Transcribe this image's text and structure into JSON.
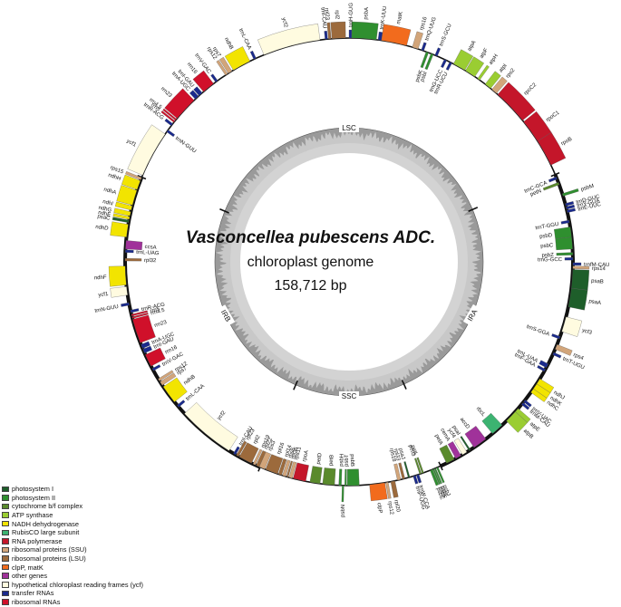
{
  "title": {
    "species": "Vasconcellea pubescens ADC.",
    "subtitle": "chloroplast genome",
    "size": "158,712 bp"
  },
  "regions": [
    {
      "label": "LSC"
    },
    {
      "label": "IRA"
    },
    {
      "label": "SSC"
    },
    {
      "label": "IRB"
    }
  ],
  "categories": [
    {
      "key": "psI",
      "label": "photosystem I",
      "color": "#1e5e2a"
    },
    {
      "key": "psII",
      "label": "photosystem II",
      "color": "#2f8f2f"
    },
    {
      "key": "cytb",
      "label": "cytochrome b/f complex",
      "color": "#5a8a2c"
    },
    {
      "key": "atp",
      "label": "ATP synthase",
      "color": "#9acd32"
    },
    {
      "key": "ndh",
      "label": "NADH dehydrogenase",
      "color": "#f2e400"
    },
    {
      "key": "rbc",
      "label": "RubisCO large subunit",
      "color": "#3cb371"
    },
    {
      "key": "rpo",
      "label": "RNA polymerase",
      "color": "#c4162a"
    },
    {
      "key": "ssu",
      "label": "ribosomal proteins (SSU)",
      "color": "#d2a57a"
    },
    {
      "key": "lsu",
      "label": "ribosomal proteins (LSU)",
      "color": "#9c6a3c"
    },
    {
      "key": "clp",
      "label": "clpP, matK",
      "color": "#f26b1d"
    },
    {
      "key": "other",
      "label": "other genes",
      "color": "#a0329a"
    },
    {
      "key": "ycf",
      "label": "hypothetical chloroplast reading frames (ycf)",
      "color": "#fffbe0"
    },
    {
      "key": "trna",
      "label": "transfer RNAs",
      "color": "#1a2a8c"
    },
    {
      "key": "rrna",
      "label": "ribosomal RNAs",
      "color": "#d0102a"
    }
  ],
  "genes": [
    {
      "name": "psbA",
      "start": 0.3,
      "end": 3.2,
      "cat": "psII",
      "side": "out"
    },
    {
      "name": "trnH-GUG",
      "start": 0.0,
      "end": 0.3,
      "cat": "trna",
      "side": "out"
    },
    {
      "name": "trnK-UUU",
      "start": 3.4,
      "end": 3.8,
      "cat": "trna",
      "side": "out"
    },
    {
      "name": "matK",
      "start": 3.8,
      "end": 6.8,
      "cat": "clp",
      "side": "out"
    },
    {
      "name": "rps16",
      "start": 7.5,
      "end": 8.2,
      "cat": "ssu",
      "side": "out"
    },
    {
      "name": "trnQ-UUG",
      "start": 8.6,
      "end": 8.9,
      "cat": "trna",
      "side": "out"
    },
    {
      "name": "psbK",
      "start": 9.2,
      "end": 9.5,
      "cat": "psII",
      "side": "in"
    },
    {
      "name": "psbI",
      "start": 9.8,
      "end": 10.1,
      "cat": "psII",
      "side": "in"
    },
    {
      "name": "trnS-GCU",
      "start": 10.3,
      "end": 10.6,
      "cat": "trna",
      "side": "out"
    },
    {
      "name": "trnG-UCC",
      "start": 11.5,
      "end": 11.8,
      "cat": "trna",
      "side": "in"
    },
    {
      "name": "trnR-UCU",
      "start": 12.2,
      "end": 12.5,
      "cat": "trna",
      "side": "in"
    },
    {
      "name": "atpA",
      "start": 12.7,
      "end": 14.2,
      "cat": "atp",
      "side": "out"
    },
    {
      "name": "atpF",
      "start": 14.3,
      "end": 15.6,
      "cat": "atp",
      "side": "out"
    },
    {
      "name": "atpH",
      "start": 16.0,
      "end": 16.3,
      "cat": "atp",
      "side": "out"
    },
    {
      "name": "atpI",
      "start": 17.1,
      "end": 17.9,
      "cat": "atp",
      "side": "out"
    },
    {
      "name": "rps2",
      "start": 18.1,
      "end": 18.8,
      "cat": "ssu",
      "side": "out"
    },
    {
      "name": "rpoC2",
      "start": 19.0,
      "end": 23.2,
      "cat": "rpo",
      "side": "out"
    },
    {
      "name": "rpoC1",
      "start": 23.4,
      "end": 26.2,
      "cat": "rpo",
      "side": "out"
    },
    {
      "name": "rpoB",
      "start": 26.2,
      "end": 29.4,
      "cat": "rpo",
      "side": "out"
    },
    {
      "name": "trnC-GCA",
      "start": 30.9,
      "end": 31.2,
      "cat": "trna",
      "side": "in"
    },
    {
      "name": "petN",
      "start": 31.6,
      "end": 31.9,
      "cat": "cytb",
      "side": "in"
    },
    {
      "name": "psbM",
      "start": 33.0,
      "end": 33.3,
      "cat": "psII",
      "side": "out"
    },
    {
      "name": "trnD-GUC",
      "start": 34.2,
      "end": 34.5,
      "cat": "trna",
      "side": "out"
    },
    {
      "name": "trnY-GUA",
      "start": 34.6,
      "end": 34.9,
      "cat": "trna",
      "side": "out"
    },
    {
      "name": "trnE-UUC",
      "start": 35.0,
      "end": 35.3,
      "cat": "trna",
      "side": "out"
    },
    {
      "name": "trnT-GGU",
      "start": 36.2,
      "end": 36.5,
      "cat": "trna",
      "side": "in"
    },
    {
      "name": "psbD",
      "start": 37.0,
      "end": 38.2,
      "cat": "psII",
      "side": "in"
    },
    {
      "name": "psbC",
      "start": 38.2,
      "end": 39.6,
      "cat": "psII",
      "side": "in"
    },
    {
      "name": "psbZ",
      "start": 40.0,
      "end": 40.3,
      "cat": "psII",
      "side": "in"
    },
    {
      "name": "trnG-GCC",
      "start": 40.6,
      "end": 40.9,
      "cat": "trna",
      "side": "in"
    },
    {
      "name": "trnfM-CAU",
      "start": 41.2,
      "end": 41.5,
      "cat": "trna",
      "side": "out"
    },
    {
      "name": "rps14",
      "start": 41.6,
      "end": 41.9,
      "cat": "ssu",
      "side": "out"
    },
    {
      "name": "psaB",
      "start": 42.0,
      "end": 44.2,
      "cat": "psI",
      "side": "out"
    },
    {
      "name": "psaA",
      "start": 44.2,
      "end": 46.4,
      "cat": "psI",
      "side": "out"
    },
    {
      "name": "ycf3",
      "start": 47.6,
      "end": 49.4,
      "cat": "ycf",
      "side": "out"
    },
    {
      "name": "trnS-GGA",
      "start": 50.0,
      "end": 50.3,
      "cat": "trna",
      "side": "in"
    },
    {
      "name": "rps4",
      "start": 51.0,
      "end": 51.6,
      "cat": "ssu",
      "side": "out"
    },
    {
      "name": "trnT-UGU",
      "start": 52.0,
      "end": 52.3,
      "cat": "trna",
      "side": "out"
    },
    {
      "name": "trnL-UAA",
      "start": 53.5,
      "end": 54.0,
      "cat": "trna",
      "side": "in"
    },
    {
      "name": "trnF-GAA",
      "start": 54.2,
      "end": 54.5,
      "cat": "trna",
      "side": "in"
    },
    {
      "name": "ndhJ",
      "start": 55.5,
      "end": 56.2,
      "cat": "ndh",
      "side": "out"
    },
    {
      "name": "ndhK",
      "start": 56.2,
      "end": 56.9,
      "cat": "ndh",
      "side": "out"
    },
    {
      "name": "ndhC",
      "start": 56.9,
      "end": 57.4,
      "cat": "ndh",
      "side": "out"
    },
    {
      "name": "trnV-UAC",
      "start": 58.5,
      "end": 58.8,
      "cat": "trna",
      "side": "out"
    },
    {
      "name": "trnM-CAU",
      "start": 58.9,
      "end": 59.2,
      "cat": "trna",
      "side": "out"
    },
    {
      "name": "atpE",
      "start": 59.8,
      "end": 60.3,
      "cat": "atp",
      "side": "out"
    },
    {
      "name": "atpB",
      "start": 60.3,
      "end": 61.8,
      "cat": "atp",
      "side": "out"
    },
    {
      "name": "rbcL",
      "start": 62.5,
      "end": 64.0,
      "cat": "rbc",
      "side": "in"
    },
    {
      "name": "accD",
      "start": 65.0,
      "end": 66.7,
      "cat": "other",
      "side": "in"
    },
    {
      "name": "psaI",
      "start": 67.2,
      "end": 67.4,
      "cat": "psI",
      "side": "in"
    },
    {
      "name": "ycf4",
      "start": 67.7,
      "end": 68.3,
      "cat": "ycf",
      "side": "in"
    },
    {
      "name": "cemA",
      "start": 68.5,
      "end": 69.2,
      "cat": "other",
      "side": "in"
    },
    {
      "name": "petA",
      "start": 69.4,
      "end": 70.4,
      "cat": "cytb",
      "side": "in"
    },
    {
      "name": "psbJ",
      "start": 71.5,
      "end": 71.7,
      "cat": "psII",
      "side": "out"
    },
    {
      "name": "psbL",
      "start": 71.8,
      "end": 71.95,
      "cat": "psII",
      "side": "out"
    },
    {
      "name": "psbF",
      "start": 72.0,
      "end": 72.15,
      "cat": "psII",
      "side": "out"
    },
    {
      "name": "psbE",
      "start": 72.2,
      "end": 72.5,
      "cat": "psII",
      "side": "out"
    },
    {
      "name": "petL",
      "start": 73.3,
      "end": 73.5,
      "cat": "cytb",
      "side": "in"
    },
    {
      "name": "petG",
      "start": 73.6,
      "end": 73.8,
      "cat": "cytb",
      "side": "in"
    },
    {
      "name": "trnW-CCA",
      "start": 73.9,
      "end": 74.2,
      "cat": "trna",
      "side": "out"
    },
    {
      "name": "trnP-UGG",
      "start": 74.3,
      "end": 74.6,
      "cat": "trna",
      "side": "out"
    },
    {
      "name": "psaJ",
      "start": 75.0,
      "end": 75.2,
      "cat": "psI",
      "side": "in"
    },
    {
      "name": "rpl33",
      "start": 75.6,
      "end": 75.9,
      "cat": "lsu",
      "side": "in"
    },
    {
      "name": "rps18",
      "start": 76.1,
      "end": 76.5,
      "cat": "ssu",
      "side": "in"
    },
    {
      "name": "rpl20",
      "start": 76.8,
      "end": 77.3,
      "cat": "lsu",
      "side": "out"
    },
    {
      "name": "rps12",
      "start": 77.6,
      "end": 77.9,
      "cat": "ssu",
      "side": "out"
    },
    {
      "name": "clpP",
      "start": 78.0,
      "end": 79.8,
      "cat": "clp",
      "side": "out"
    },
    {
      "name": "psbB",
      "start": 81.0,
      "end": 82.4,
      "cat": "psII",
      "side": "in"
    },
    {
      "name": "psbT",
      "start": 82.5,
      "end": 82.7,
      "cat": "psII",
      "side": "in"
    },
    {
      "name": "psbN",
      "start": 82.8,
      "end": 83.0,
      "cat": "psII",
      "side": "out"
    },
    {
      "name": "psbH",
      "start": 83.1,
      "end": 83.4,
      "cat": "psII",
      "side": "in"
    },
    {
      "name": "petB",
      "start": 83.9,
      "end": 85.3,
      "cat": "cytb",
      "side": "in"
    },
    {
      "name": "petD",
      "start": 85.6,
      "end": 86.8,
      "cat": "cytb",
      "side": "in"
    },
    {
      "name": "rpoA",
      "start": 87.3,
      "end": 88.8,
      "cat": "rpo",
      "side": "in"
    },
    {
      "name": "rps11",
      "start": 88.9,
      "end": 89.3,
      "cat": "ssu",
      "side": "in"
    },
    {
      "name": "rpl36",
      "start": 89.4,
      "end": 89.6,
      "cat": "lsu",
      "side": "in"
    },
    {
      "name": "rps8",
      "start": 89.7,
      "end": 90.1,
      "cat": "ssu",
      "side": "in"
    },
    {
      "name": "rpl14",
      "start": 90.2,
      "end": 90.6,
      "cat": "lsu",
      "side": "in"
    },
    {
      "name": "rpl16",
      "start": 90.7,
      "end": 92.2,
      "cat": "lsu",
      "side": "in"
    },
    {
      "name": "rps3",
      "start": 92.3,
      "end": 93.0,
      "cat": "ssu",
      "side": "in"
    },
    {
      "name": "rpl22",
      "start": 93.0,
      "end": 93.4,
      "cat": "lsu",
      "side": "in"
    },
    {
      "name": "rps19",
      "start": 93.5,
      "end": 93.8,
      "cat": "ssu",
      "side": "in"
    },
    {
      "name": "rpl2",
      "start": 94.0,
      "end": 95.6,
      "cat": "lsu",
      "side": "in"
    },
    {
      "name": "rpl23",
      "start": 95.7,
      "end": 96.0,
      "cat": "lsu",
      "side": "in"
    },
    {
      "name": "trnI-CAU",
      "start": 96.1,
      "end": 96.4,
      "cat": "trna",
      "side": "in"
    },
    {
      "name": "ycf2",
      "start": 97.0,
      "end": 103.8,
      "cat": "ycf",
      "side": "in"
    },
    {
      "name": "trnL-CAA",
      "start": 104.8,
      "end": 105.1,
      "cat": "trna",
      "side": "in"
    },
    {
      "name": "ndhB",
      "start": 105.6,
      "end": 107.8,
      "cat": "ndh",
      "side": "in"
    },
    {
      "name": "rps7",
      "start": 108.0,
      "end": 108.5,
      "cat": "ssu",
      "side": "in"
    },
    {
      "name": "rps12",
      "start": 108.6,
      "end": 108.9,
      "cat": "ssu",
      "side": "in"
    },
    {
      "name": "trnV-GAC",
      "start": 110.0,
      "end": 110.3,
      "cat": "trna",
      "side": "in"
    },
    {
      "name": "rrn16",
      "start": 110.6,
      "end": 112.1,
      "cat": "rrna",
      "side": "in"
    },
    {
      "name": "trnI-GAU",
      "start": 112.3,
      "end": 112.8,
      "cat": "trna",
      "side": "in"
    },
    {
      "name": "trnA-UGC",
      "start": 112.9,
      "end": 113.4,
      "cat": "trna",
      "side": "in"
    },
    {
      "name": "rrn23",
      "start": 113.6,
      "end": 116.5,
      "cat": "rrna",
      "side": "in"
    },
    {
      "name": "rrn4.5",
      "start": 116.6,
      "end": 116.8,
      "cat": "rrna",
      "side": "in"
    },
    {
      "name": "rrn5",
      "start": 116.9,
      "end": 117.1,
      "cat": "rrna",
      "side": "in"
    },
    {
      "name": "trnR-ACG",
      "start": 117.3,
      "end": 117.6,
      "cat": "trna",
      "side": "in"
    },
    {
      "name": "trnN-GUU",
      "start": 118.2,
      "end": 118.5,
      "cat": "trna",
      "side": "out"
    },
    {
      "name": "ycf1",
      "start": 119.4,
      "end": 120.4,
      "cat": "ycf",
      "side": "out"
    },
    {
      "name": "ndhF",
      "start": 120.6,
      "end": 122.8,
      "cat": "ndh",
      "side": "out"
    },
    {
      "name": "rpl32",
      "start": 123.4,
      "end": 123.7,
      "cat": "lsu",
      "side": "in"
    },
    {
      "name": "trnL-UAG",
      "start": 124.4,
      "end": 124.7,
      "cat": "trna",
      "side": "in"
    },
    {
      "name": "ccsA",
      "start": 124.8,
      "end": 125.8,
      "cat": "other",
      "side": "in"
    },
    {
      "name": "ndhD",
      "start": 126.2,
      "end": 127.7,
      "cat": "ndh",
      "side": "out"
    },
    {
      "name": "psaC",
      "start": 127.9,
      "end": 128.2,
      "cat": "psI",
      "side": "out"
    },
    {
      "name": "ndhE",
      "start": 128.3,
      "end": 128.6,
      "cat": "ndh",
      "side": "out"
    },
    {
      "name": "ndhG",
      "start": 128.7,
      "end": 129.2,
      "cat": "ndh",
      "side": "out"
    },
    {
      "name": "ndhI",
      "start": 129.4,
      "end": 129.9,
      "cat": "ndh",
      "side": "out"
    },
    {
      "name": "ndhA",
      "start": 130.0,
      "end": 131.8,
      "cat": "ndh",
      "side": "out"
    },
    {
      "name": "ndhH",
      "start": 131.9,
      "end": 133.0,
      "cat": "ndh",
      "side": "out"
    },
    {
      "name": "rps15",
      "start": 133.1,
      "end": 133.4,
      "cat": "ssu",
      "side": "out"
    },
    {
      "name": "ycf1",
      "start": 133.7,
      "end": 139.2,
      "cat": "ycf",
      "side": "out"
    },
    {
      "name": "trnN-GUU",
      "start": 139.5,
      "end": 139.8,
      "cat": "trna",
      "side": "in"
    },
    {
      "name": "trnR-ACG",
      "start": 140.4,
      "end": 140.7,
      "cat": "trna",
      "side": "out"
    },
    {
      "name": "rrn5",
      "start": 140.9,
      "end": 141.1,
      "cat": "rrna",
      "side": "out"
    },
    {
      "name": "rrn4.5",
      "start": 141.2,
      "end": 141.4,
      "cat": "rrna",
      "side": "out"
    },
    {
      "name": "rrn23",
      "start": 141.5,
      "end": 144.4,
      "cat": "rrna",
      "side": "out"
    },
    {
      "name": "trnA-UGC",
      "start": 144.6,
      "end": 145.1,
      "cat": "trna",
      "side": "out"
    },
    {
      "name": "trnI-GAU",
      "start": 145.2,
      "end": 145.7,
      "cat": "trna",
      "side": "out"
    },
    {
      "name": "rrn16",
      "start": 145.9,
      "end": 147.4,
      "cat": "rrna",
      "side": "out"
    },
    {
      "name": "trnV-GAC",
      "start": 147.7,
      "end": 148.0,
      "cat": "trna",
      "side": "out"
    },
    {
      "name": "rps12",
      "start": 149.1,
      "end": 149.4,
      "cat": "ssu",
      "side": "out"
    },
    {
      "name": "rps7",
      "start": 149.5,
      "end": 150.0,
      "cat": "ssu",
      "side": "out"
    },
    {
      "name": "ndhB",
      "start": 150.2,
      "end": 152.4,
      "cat": "ndh",
      "side": "out"
    },
    {
      "name": "trnL-CAA",
      "start": 152.9,
      "end": 153.2,
      "cat": "trna",
      "side": "out"
    },
    {
      "name": "ycf2",
      "start": 154.2,
      "end": 161.0,
      "cat": "ycf",
      "side": "out"
    },
    {
      "name": "trnI-CAU",
      "start": 161.6,
      "end": 161.9,
      "cat": "trna",
      "side": "out"
    },
    {
      "name": "rpl23",
      "start": 162.0,
      "end": 162.3,
      "cat": "lsu",
      "side": "out"
    },
    {
      "name": "rpl2",
      "start": 162.4,
      "end": 164.0,
      "cat": "lsu",
      "side": "out"
    }
  ]
}
